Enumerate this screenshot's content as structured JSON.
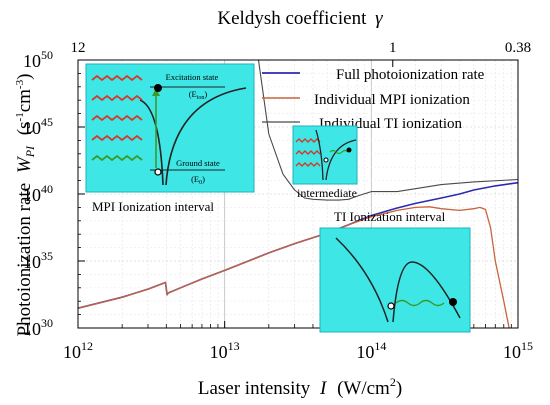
{
  "chart_data": {
    "type": "line",
    "title": "",
    "xlabel": "Laser intensity",
    "xlabel_symbol": "I",
    "xlabel_unit": "(W/cm",
    "xlabel_unit_sup": "2",
    "xlabel_unit_end": ")",
    "ylabel": "Photoionization rate",
    "ylabel_symbol": "W",
    "ylabel_symbol_sub": "PI",
    "ylabel_unit": "(s",
    "ylabel_unit_sup1": "-1",
    "ylabel_unit_mid": "cm",
    "ylabel_unit_sup2": "-3",
    "ylabel_unit_end": ")",
    "top_axis_label": "Keldysh coefficient",
    "top_axis_symbol": "γ",
    "x_scale": "log",
    "y_scale": "log",
    "xlim": [
      1000000000000.0,
      1000000000000000.0
    ],
    "ylim": [
      1e+30,
      1e+50
    ],
    "x_ticks": [
      {
        "value": 1000000000000.0,
        "base": "10",
        "exp": "12"
      },
      {
        "value": 10000000000000.0,
        "base": "10",
        "exp": "13"
      },
      {
        "value": 100000000000000.0,
        "base": "10",
        "exp": "14"
      },
      {
        "value": 1000000000000000.0,
        "base": "10",
        "exp": "15"
      }
    ],
    "y_ticks": [
      {
        "value": 1e+30,
        "base": "10",
        "exp": "30"
      },
      {
        "value": 1e+35,
        "base": "10",
        "exp": "35"
      },
      {
        "value": 1e+40,
        "base": "10",
        "exp": "40"
      },
      {
        "value": 1e+45,
        "base": "10",
        "exp": "45"
      },
      {
        "value": 1e+50,
        "base": "10",
        "exp": "50"
      }
    ],
    "top_ticks": [
      {
        "at_intensity": 1000000000000.0,
        "label": "12"
      },
      {
        "at_intensity": 140000000000000.0,
        "label": "1"
      },
      {
        "at_intensity": 1000000000000000.0,
        "label": "0.38"
      }
    ],
    "grid": true,
    "legend_position": "top-right",
    "series": [
      {
        "name": "Full photoionization rate",
        "color": "#2b2bb0",
        "points": [
          [
            1000000000000.0,
            3e+31
          ],
          [
            2000000000000.0,
            2e+32
          ],
          [
            3000000000000.0,
            8e+32
          ],
          [
            3500000000000.0,
            1.5e+33
          ],
          [
            3950000000000.0,
            2.5e+33
          ],
          [
            4050000000000.0,
            3e+32
          ],
          [
            4100000000000.0,
            4e+32
          ],
          [
            5000000000000.0,
            1e+33
          ],
          [
            7000000000000.0,
            4.5e+33
          ],
          [
            10000000000000.0,
            2e+34
          ],
          [
            20000000000000.0,
            4e+35
          ],
          [
            30000000000000.0,
            2e+36
          ],
          [
            50000000000000.0,
            1.2e+37
          ],
          [
            70000000000000.0,
            5e+37
          ],
          [
            100000000000000.0,
            2.5e+38
          ],
          [
            150000000000000.0,
            9e+38
          ],
          [
            200000000000000.0,
            2e+39
          ],
          [
            300000000000000.0,
            5e+39
          ],
          [
            400000000000000.0,
            1e+40
          ],
          [
            500000000000000.0,
            2e+40
          ],
          [
            700000000000000.0,
            4e+40
          ],
          [
            1000000000000000.0,
            7e+40
          ]
        ]
      },
      {
        "name": "Individual MPI  ionization",
        "color": "#c8643c",
        "points": [
          [
            1000000000000.0,
            3e+31
          ],
          [
            2000000000000.0,
            2e+32
          ],
          [
            3000000000000.0,
            8e+32
          ],
          [
            3500000000000.0,
            1.5e+33
          ],
          [
            3950000000000.0,
            2.5e+33
          ],
          [
            4050000000000.0,
            3e+32
          ],
          [
            4100000000000.0,
            4e+32
          ],
          [
            5000000000000.0,
            1e+33
          ],
          [
            7000000000000.0,
            4.5e+33
          ],
          [
            10000000000000.0,
            2e+34
          ],
          [
            20000000000000.0,
            4e+35
          ],
          [
            30000000000000.0,
            2e+36
          ],
          [
            50000000000000.0,
            1.2e+37
          ],
          [
            70000000000000.0,
            5e+37
          ],
          [
            100000000000000.0,
            2e+38
          ],
          [
            150000000000000.0,
            6e+38
          ],
          [
            200000000000000.0,
            1e+39
          ],
          [
            250000000000000.0,
            1.1e+39
          ],
          [
            300000000000000.0,
            8e+38
          ],
          [
            400000000000000.0,
            6e+38
          ],
          [
            500000000000000.0,
            8e+38
          ],
          [
            550000000000000.0,
            1e+39
          ],
          [
            600000000000000.0,
            7e+38
          ],
          [
            650000000000000.0,
            3e+37
          ],
          [
            700000000000000.0,
            1e+35
          ],
          [
            800000000000000.0,
            1e+32
          ],
          [
            870000000000000.0,
            1e+30
          ]
        ]
      },
      {
        "name": "Individual TI ionization",
        "color": "#4a4a4a",
        "points": [
          [
            17000000000000.0,
            1e+50
          ],
          [
            20000000000000.0,
            3e+44
          ],
          [
            25000000000000.0,
            3e+41
          ],
          [
            30000000000000.0,
            2e+40
          ],
          [
            35000000000000.0,
            5e+39
          ],
          [
            40000000000000.0,
            4e+39
          ],
          [
            50000000000000.0,
            3.5e+39
          ],
          [
            60000000000000.0,
            3.5e+39
          ],
          [
            70000000000000.0,
            4e+39
          ],
          [
            80000000000000.0,
            7e+39
          ],
          [
            100000000000000.0,
            1.5e+40
          ],
          [
            150000000000000.0,
            1.5e+40
          ],
          [
            200000000000000.0,
            2.5e+40
          ],
          [
            300000000000000.0,
            5e+40
          ],
          [
            500000000000000.0,
            8e+40
          ],
          [
            1000000000000000.0,
            1.2e+41
          ]
        ]
      }
    ],
    "annotations": {
      "mpi_interval": "MPI Ionization interval",
      "ti_interval": "TI Ionization interval",
      "intermediate": "intermediate",
      "excitation_state": "Excitation state",
      "e_ion": "(E",
      "e_ion_sub": "ion",
      "e_ion_end": ")",
      "ground_state": "Ground state",
      "e0": "(E",
      "e0_sub": "0",
      "e0_end": ")"
    }
  }
}
